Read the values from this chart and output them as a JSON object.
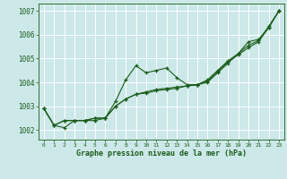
{
  "background_color": "#cce8e8",
  "grid_color": "#b0d4d4",
  "line_color": "#1a5c1a",
  "marker_color": "#1a5c1a",
  "title": "Graphe pression niveau de la mer (hPa)",
  "title_color": "#1a5c1a",
  "ylim": [
    1001.6,
    1007.3
  ],
  "xlim": [
    -0.5,
    23.5
  ],
  "yticks": [
    1002,
    1003,
    1004,
    1005,
    1006,
    1007
  ],
  "xticks": [
    0,
    1,
    2,
    3,
    4,
    5,
    6,
    7,
    8,
    9,
    10,
    11,
    12,
    13,
    14,
    15,
    16,
    17,
    18,
    19,
    20,
    21,
    22,
    23
  ],
  "line1_x": [
    0,
    1,
    2,
    3,
    4,
    5,
    6,
    7,
    8,
    9,
    10,
    11,
    12,
    13,
    14,
    15,
    16,
    17,
    18,
    19,
    20,
    21,
    22,
    23
  ],
  "line1_y": [
    1002.9,
    1002.2,
    1002.1,
    1002.4,
    1002.4,
    1002.4,
    1002.5,
    1003.2,
    1004.1,
    1004.7,
    1004.4,
    1004.5,
    1004.6,
    1004.2,
    1003.9,
    1003.9,
    1004.0,
    1004.4,
    1004.8,
    1005.2,
    1005.7,
    1005.8,
    1006.3,
    1007.0
  ],
  "line2_x": [
    0,
    1,
    2,
    3,
    4,
    5,
    6,
    7,
    8,
    9,
    10,
    11,
    12,
    13,
    14,
    15,
    16,
    17,
    18,
    19,
    20,
    21,
    22,
    23
  ],
  "line2_y": [
    1002.9,
    1002.2,
    1002.4,
    1002.4,
    1002.4,
    1002.5,
    1002.5,
    1003.0,
    1003.3,
    1003.5,
    1003.6,
    1003.7,
    1003.75,
    1003.8,
    1003.85,
    1003.9,
    1004.1,
    1004.5,
    1004.9,
    1005.2,
    1005.55,
    1005.75,
    1006.35,
    1007.0
  ],
  "line3_x": [
    0,
    1,
    2,
    3,
    4,
    5,
    6,
    7,
    8,
    9,
    10,
    11,
    12,
    13,
    14,
    15,
    16,
    17,
    18,
    19,
    20,
    21,
    22,
    23
  ],
  "line3_y": [
    1002.9,
    1002.2,
    1002.4,
    1002.4,
    1002.4,
    1002.5,
    1002.5,
    1003.0,
    1003.3,
    1003.5,
    1003.55,
    1003.65,
    1003.7,
    1003.75,
    1003.85,
    1003.9,
    1004.05,
    1004.45,
    1004.85,
    1005.15,
    1005.45,
    1005.7,
    1006.3,
    1007.0
  ]
}
